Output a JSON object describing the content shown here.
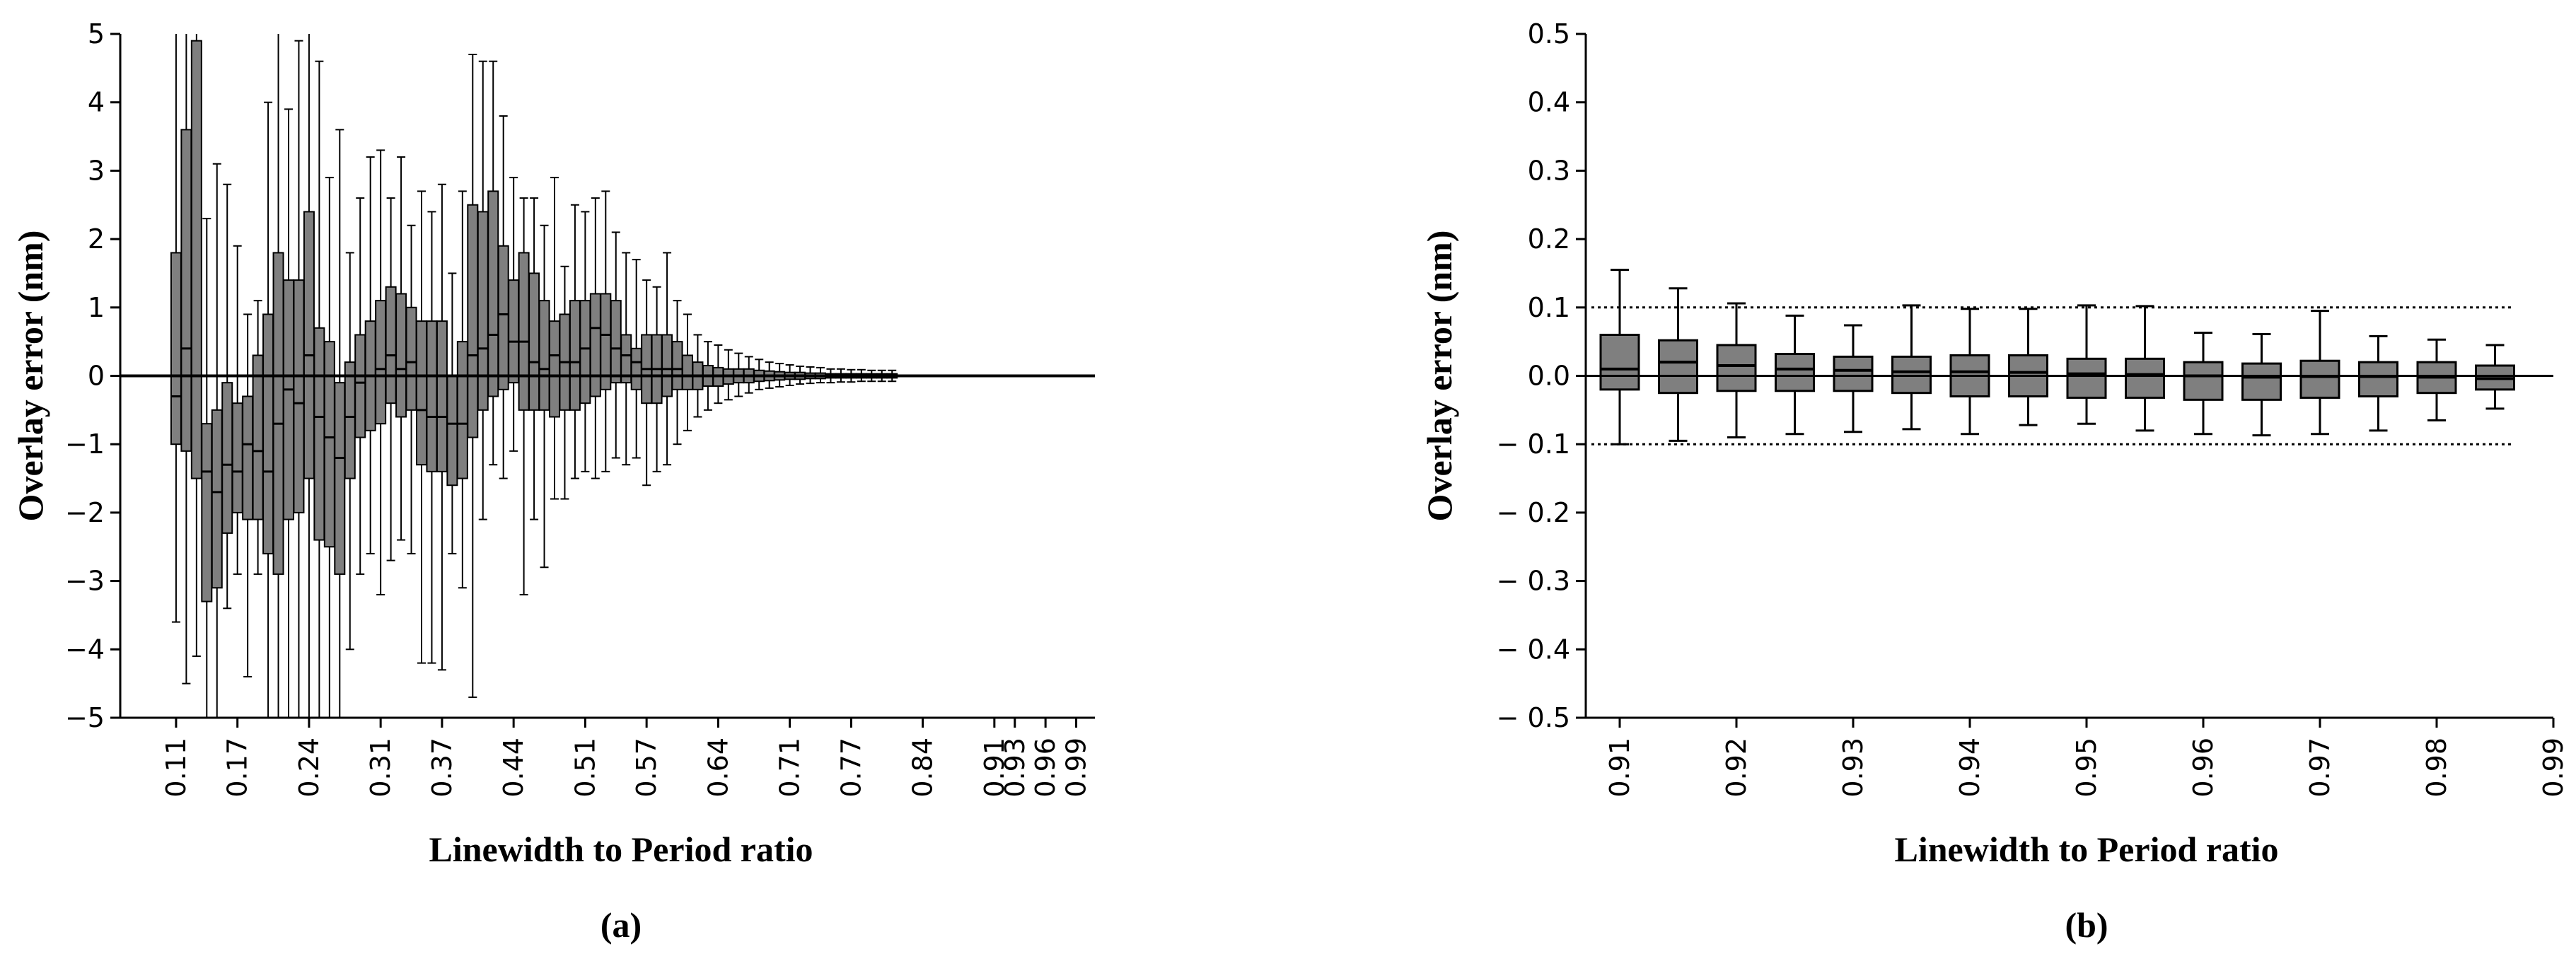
{
  "chart_data": [
    {
      "type": "boxplot",
      "panel_label": "(a)",
      "xlabel": "Linewidth to Period ratio",
      "ylabel": "Overlay error (nm)",
      "ylim": [
        -5,
        5
      ],
      "yticks": [
        -5,
        -4,
        -3,
        -2,
        -1,
        0,
        1,
        2,
        3,
        4,
        5
      ],
      "xlim": [
        0.09,
        1.0
      ],
      "xticks": [
        0.11,
        0.17,
        0.24,
        0.31,
        0.37,
        0.44,
        0.51,
        0.57,
        0.64,
        0.71,
        0.77,
        0.84,
        0.91,
        0.93,
        0.96,
        0.99
      ],
      "x_tick_labels": [
        "0.11",
        "0.17",
        "0.24",
        "0.31",
        "0.37",
        "0.44",
        "0.51",
        "0.57",
        "0.64",
        "0.71",
        "0.77",
        "0.84",
        "0.91",
        "0.93",
        "0.96",
        "0.99"
      ],
      "reference_lines": [
        0
      ],
      "box_color": "#7f7f7f",
      "boxes": [
        {
          "x": 0.11,
          "min": -3.6,
          "q1": -1.0,
          "median": -0.3,
          "q3": 1.8,
          "max": 5.0
        },
        {
          "x": 0.12,
          "min": -4.5,
          "q1": -1.1,
          "median": 0.4,
          "q3": 3.6,
          "max": 5.0
        },
        {
          "x": 0.13,
          "min": -4.1,
          "q1": -1.5,
          "median": 0.0,
          "q3": 4.9,
          "max": 5.0
        },
        {
          "x": 0.14,
          "min": -5.0,
          "q1": -3.3,
          "median": -1.4,
          "q3": -0.7,
          "max": 2.3
        },
        {
          "x": 0.15,
          "min": -5.0,
          "q1": -3.1,
          "median": -1.7,
          "q3": -0.5,
          "max": 3.1
        },
        {
          "x": 0.16,
          "min": -3.4,
          "q1": -2.3,
          "median": -1.3,
          "q3": -0.1,
          "max": 2.8
        },
        {
          "x": 0.17,
          "min": -2.9,
          "q1": -2.0,
          "median": -1.4,
          "q3": -0.4,
          "max": 1.9
        },
        {
          "x": 0.18,
          "min": -4.4,
          "q1": -2.1,
          "median": -1.0,
          "q3": -0.3,
          "max": 0.9
        },
        {
          "x": 0.19,
          "min": -2.9,
          "q1": -2.1,
          "median": -1.1,
          "q3": 0.3,
          "max": 1.1
        },
        {
          "x": 0.2,
          "min": -5.0,
          "q1": -2.6,
          "median": -1.4,
          "q3": 0.9,
          "max": 4.0
        },
        {
          "x": 0.21,
          "min": -5.0,
          "q1": -2.9,
          "median": -0.7,
          "q3": 1.8,
          "max": 5.0
        },
        {
          "x": 0.22,
          "min": -5.0,
          "q1": -2.1,
          "median": -0.2,
          "q3": 1.4,
          "max": 3.9
        },
        {
          "x": 0.23,
          "min": -5.0,
          "q1": -2.0,
          "median": -0.4,
          "q3": 1.4,
          "max": 4.9
        },
        {
          "x": 0.24,
          "min": -5.0,
          "q1": -1.5,
          "median": 0.3,
          "q3": 2.4,
          "max": 5.0
        },
        {
          "x": 0.25,
          "min": -5.0,
          "q1": -2.4,
          "median": -0.6,
          "q3": 0.7,
          "max": 4.6
        },
        {
          "x": 0.26,
          "min": -5.0,
          "q1": -2.5,
          "median": -0.9,
          "q3": 0.5,
          "max": 2.9
        },
        {
          "x": 0.27,
          "min": -5.0,
          "q1": -2.9,
          "median": -1.2,
          "q3": -0.1,
          "max": 3.6
        },
        {
          "x": 0.28,
          "min": -4.0,
          "q1": -1.5,
          "median": -0.6,
          "q3": 0.2,
          "max": 1.8
        },
        {
          "x": 0.29,
          "min": -2.9,
          "q1": -0.9,
          "median": -0.1,
          "q3": 0.6,
          "max": 2.6
        },
        {
          "x": 0.3,
          "min": -2.6,
          "q1": -0.8,
          "median": 0.0,
          "q3": 0.8,
          "max": 3.2
        },
        {
          "x": 0.31,
          "min": -3.2,
          "q1": -0.7,
          "median": 0.1,
          "q3": 1.1,
          "max": 3.3
        },
        {
          "x": 0.32,
          "min": -2.7,
          "q1": -0.4,
          "median": 0.3,
          "q3": 1.3,
          "max": 2.6
        },
        {
          "x": 0.33,
          "min": -2.4,
          "q1": -0.6,
          "median": 0.1,
          "q3": 1.2,
          "max": 3.2
        },
        {
          "x": 0.34,
          "min": -2.6,
          "q1": -0.5,
          "median": 0.2,
          "q3": 1.0,
          "max": 2.2
        },
        {
          "x": 0.35,
          "min": -4.2,
          "q1": -1.3,
          "median": -0.5,
          "q3": 0.8,
          "max": 2.7
        },
        {
          "x": 0.36,
          "min": -4.2,
          "q1": -1.4,
          "median": -0.6,
          "q3": 0.8,
          "max": 2.4
        },
        {
          "x": 0.37,
          "min": -4.3,
          "q1": -1.4,
          "median": -0.6,
          "q3": 0.8,
          "max": 2.8
        },
        {
          "x": 0.38,
          "min": -2.6,
          "q1": -1.6,
          "median": -0.7,
          "q3": 0.0,
          "max": 1.5
        },
        {
          "x": 0.39,
          "min": -3.1,
          "q1": -1.5,
          "median": -0.7,
          "q3": 0.5,
          "max": 2.7
        },
        {
          "x": 0.4,
          "min": -4.7,
          "q1": -0.9,
          "median": 0.3,
          "q3": 2.5,
          "max": 4.7
        },
        {
          "x": 0.41,
          "min": -2.1,
          "q1": -0.5,
          "median": 0.4,
          "q3": 2.4,
          "max": 4.6
        },
        {
          "x": 0.42,
          "min": -1.3,
          "q1": -0.3,
          "median": 0.6,
          "q3": 2.7,
          "max": 4.6
        },
        {
          "x": 0.43,
          "min": -1.5,
          "q1": -0.2,
          "median": 0.9,
          "q3": 1.9,
          "max": 3.8
        },
        {
          "x": 0.44,
          "min": -1.1,
          "q1": -0.1,
          "median": 0.5,
          "q3": 1.4,
          "max": 2.9
        },
        {
          "x": 0.45,
          "min": -3.2,
          "q1": -0.5,
          "median": 0.5,
          "q3": 1.8,
          "max": 2.6
        },
        {
          "x": 0.46,
          "min": -2.1,
          "q1": -0.5,
          "median": 0.2,
          "q3": 1.5,
          "max": 2.6
        },
        {
          "x": 0.47,
          "min": -2.8,
          "q1": -0.5,
          "median": 0.1,
          "q3": 1.1,
          "max": 2.2
        },
        {
          "x": 0.48,
          "min": -1.8,
          "q1": -0.6,
          "median": 0.3,
          "q3": 0.8,
          "max": 2.9
        },
        {
          "x": 0.49,
          "min": -1.8,
          "q1": -0.5,
          "median": 0.2,
          "q3": 0.9,
          "max": 1.6
        },
        {
          "x": 0.5,
          "min": -1.5,
          "q1": -0.5,
          "median": 0.2,
          "q3": 1.1,
          "max": 2.5
        },
        {
          "x": 0.51,
          "min": -1.4,
          "q1": -0.4,
          "median": 0.4,
          "q3": 1.1,
          "max": 2.4
        },
        {
          "x": 0.52,
          "min": -1.5,
          "q1": -0.3,
          "median": 0.7,
          "q3": 1.2,
          "max": 2.6
        },
        {
          "x": 0.53,
          "min": -1.4,
          "q1": -0.2,
          "median": 0.6,
          "q3": 1.2,
          "max": 2.7
        },
        {
          "x": 0.54,
          "min": -1.2,
          "q1": -0.1,
          "median": 0.4,
          "q3": 1.1,
          "max": 2.1
        },
        {
          "x": 0.55,
          "min": -1.3,
          "q1": -0.1,
          "median": 0.3,
          "q3": 0.6,
          "max": 1.8
        },
        {
          "x": 0.56,
          "min": -1.2,
          "q1": -0.2,
          "median": 0.2,
          "q3": 0.4,
          "max": 1.7
        },
        {
          "x": 0.57,
          "min": -1.6,
          "q1": -0.4,
          "median": 0.1,
          "q3": 0.6,
          "max": 1.4
        },
        {
          "x": 0.58,
          "min": -1.4,
          "q1": -0.4,
          "median": 0.1,
          "q3": 0.6,
          "max": 1.3
        },
        {
          "x": 0.59,
          "min": -1.3,
          "q1": -0.3,
          "median": 0.1,
          "q3": 0.6,
          "max": 1.8
        },
        {
          "x": 0.6,
          "min": -1.0,
          "q1": -0.2,
          "median": 0.1,
          "q3": 0.5,
          "max": 1.1
        },
        {
          "x": 0.61,
          "min": -0.8,
          "q1": -0.2,
          "median": 0.0,
          "q3": 0.3,
          "max": 0.9
        },
        {
          "x": 0.62,
          "min": -0.6,
          "q1": -0.2,
          "median": 0.0,
          "q3": 0.2,
          "max": 0.6
        },
        {
          "x": 0.63,
          "min": -0.5,
          "q1": -0.15,
          "median": 0.0,
          "q3": 0.15,
          "max": 0.5
        },
        {
          "x": 0.64,
          "min": -0.4,
          "q1": -0.15,
          "median": 0.0,
          "q3": 0.12,
          "max": 0.45
        },
        {
          "x": 0.65,
          "min": -0.35,
          "q1": -0.12,
          "median": 0.0,
          "q3": 0.1,
          "max": 0.38
        },
        {
          "x": 0.66,
          "min": -0.3,
          "q1": -0.1,
          "median": 0.0,
          "q3": 0.1,
          "max": 0.33
        },
        {
          "x": 0.67,
          "min": -0.25,
          "q1": -0.1,
          "median": 0.0,
          "q3": 0.1,
          "max": 0.28
        },
        {
          "x": 0.68,
          "min": -0.2,
          "q1": -0.08,
          "median": 0.0,
          "q3": 0.08,
          "max": 0.24
        },
        {
          "x": 0.69,
          "min": -0.18,
          "q1": -0.07,
          "median": 0.0,
          "q3": 0.07,
          "max": 0.2
        },
        {
          "x": 0.7,
          "min": -0.16,
          "q1": -0.06,
          "median": 0.0,
          "q3": 0.06,
          "max": 0.18
        },
        {
          "x": 0.71,
          "min": -0.14,
          "q1": -0.05,
          "median": 0.0,
          "q3": 0.05,
          "max": 0.16
        },
        {
          "x": 0.72,
          "min": -0.12,
          "q1": -0.05,
          "median": 0.0,
          "q3": 0.05,
          "max": 0.14
        },
        {
          "x": 0.73,
          "min": -0.11,
          "q1": -0.04,
          "median": 0.0,
          "q3": 0.04,
          "max": 0.13
        },
        {
          "x": 0.74,
          "min": -0.1,
          "q1": -0.04,
          "median": 0.0,
          "q3": 0.04,
          "max": 0.12
        },
        {
          "x": 0.75,
          "min": -0.1,
          "q1": -0.03,
          "median": 0.0,
          "q3": 0.03,
          "max": 0.1
        },
        {
          "x": 0.76,
          "min": -0.09,
          "q1": -0.03,
          "median": 0.0,
          "q3": 0.03,
          "max": 0.1
        },
        {
          "x": 0.77,
          "min": -0.09,
          "q1": -0.03,
          "median": 0.0,
          "q3": 0.03,
          "max": 0.09
        },
        {
          "x": 0.78,
          "min": -0.08,
          "q1": -0.03,
          "median": 0.0,
          "q3": 0.03,
          "max": 0.09
        },
        {
          "x": 0.79,
          "min": -0.08,
          "q1": -0.03,
          "median": 0.0,
          "q3": 0.03,
          "max": 0.08
        },
        {
          "x": 0.8,
          "min": -0.08,
          "q1": -0.03,
          "median": 0.0,
          "q3": 0.03,
          "max": 0.08
        },
        {
          "x": 0.81,
          "min": -0.08,
          "q1": -0.03,
          "median": 0.0,
          "q3": 0.03,
          "max": 0.08
        }
      ]
    },
    {
      "type": "boxplot",
      "panel_label": "(b)",
      "xlabel": "Linewidth to Period ratio",
      "ylabel": "Overlay error (nm)",
      "ylim": [
        -0.5,
        0.5
      ],
      "yticks": [
        -0.5,
        -0.4,
        -0.3,
        -0.2,
        -0.1,
        0.0,
        0.1,
        0.2,
        0.3,
        0.4,
        0.5
      ],
      "ytick_labels": [
        "− 0.5",
        "− 0.4",
        "− 0.3",
        "− 0.2",
        "− 0.1",
        "0.0",
        "0.1",
        "0.2",
        "0.3",
        "0.4",
        "0.5"
      ],
      "xlim": [
        0.91,
        0.99
      ],
      "xticks": [
        0.91,
        0.92,
        0.93,
        0.94,
        0.95,
        0.96,
        0.97,
        0.98,
        0.99
      ],
      "x_tick_labels": [
        "0.91",
        "0.92",
        "0.93",
        "0.94",
        "0.95",
        "0.96",
        "0.97",
        "0.98",
        "0.99"
      ],
      "reference_lines": [
        0
      ],
      "dotted_lines": [
        0.1,
        -0.1
      ],
      "box_color": "#7f7f7f",
      "boxes": [
        {
          "x": 0.91,
          "min": -0.1,
          "q1": -0.02,
          "median": 0.01,
          "q3": 0.06,
          "max": 0.155
        },
        {
          "x": 0.915,
          "min": -0.095,
          "q1": -0.025,
          "median": 0.02,
          "q3": 0.052,
          "max": 0.128
        },
        {
          "x": 0.92,
          "min": -0.09,
          "q1": -0.022,
          "median": 0.015,
          "q3": 0.045,
          "max": 0.106
        },
        {
          "x": 0.925,
          "min": -0.085,
          "q1": -0.022,
          "median": 0.01,
          "q3": 0.032,
          "max": 0.088
        },
        {
          "x": 0.93,
          "min": -0.082,
          "q1": -0.022,
          "median": 0.008,
          "q3": 0.028,
          "max": 0.074
        },
        {
          "x": 0.935,
          "min": -0.078,
          "q1": -0.025,
          "median": 0.006,
          "q3": 0.028,
          "max": 0.103
        },
        {
          "x": 0.94,
          "min": -0.085,
          "q1": -0.03,
          "median": 0.006,
          "q3": 0.03,
          "max": 0.098
        },
        {
          "x": 0.945,
          "min": -0.072,
          "q1": -0.03,
          "median": 0.005,
          "q3": 0.03,
          "max": 0.098
        },
        {
          "x": 0.95,
          "min": -0.07,
          "q1": -0.032,
          "median": 0.003,
          "q3": 0.025,
          "max": 0.103
        },
        {
          "x": 0.955,
          "min": -0.08,
          "q1": -0.032,
          "median": 0.002,
          "q3": 0.025,
          "max": 0.102
        },
        {
          "x": 0.96,
          "min": -0.085,
          "q1": -0.035,
          "median": 0.0,
          "q3": 0.02,
          "max": 0.063
        },
        {
          "x": 0.965,
          "min": -0.087,
          "q1": -0.035,
          "median": -0.002,
          "q3": 0.018,
          "max": 0.061
        },
        {
          "x": 0.97,
          "min": -0.085,
          "q1": -0.032,
          "median": -0.001,
          "q3": 0.022,
          "max": 0.095
        },
        {
          "x": 0.975,
          "min": -0.08,
          "q1": -0.03,
          "median": -0.001,
          "q3": 0.02,
          "max": 0.058
        },
        {
          "x": 0.98,
          "min": -0.065,
          "q1": -0.025,
          "median": -0.002,
          "q3": 0.02,
          "max": 0.053
        },
        {
          "x": 0.985,
          "min": -0.048,
          "q1": -0.02,
          "median": -0.004,
          "q3": 0.015,
          "max": 0.045
        }
      ]
    }
  ]
}
